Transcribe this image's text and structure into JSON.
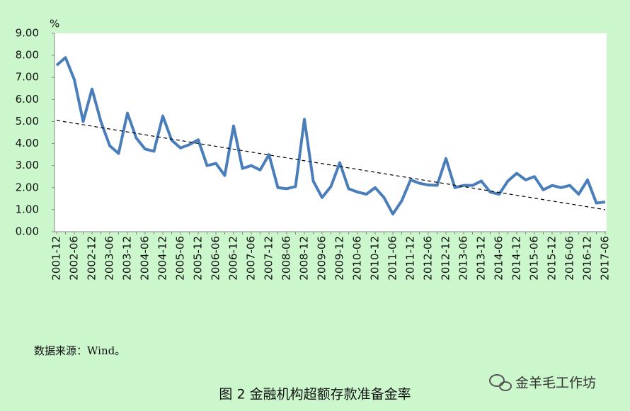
{
  "chart_data": {
    "type": "line",
    "y_unit": "%",
    "categories": [
      "2001-12",
      null,
      "2002-06",
      null,
      "2002-12",
      null,
      "2003-06",
      null,
      "2003-12",
      null,
      "2004-06",
      null,
      "2004-12",
      null,
      "2005-06",
      null,
      "2005-12",
      null,
      "2006-06",
      null,
      "2006-12",
      null,
      "2007-06",
      null,
      "2007-12",
      null,
      "2008-06",
      null,
      "2008-12",
      null,
      "2009-06",
      null,
      "2009-12",
      null,
      "2010-06",
      null,
      "2010-12",
      null,
      "2011-06",
      null,
      "2011-12",
      null,
      "2012-06",
      null,
      "2012-12",
      null,
      "2013-06",
      null,
      "2013-12",
      null,
      "2014-06",
      null,
      "2014-12",
      null,
      "2015-06",
      null,
      "2015-12",
      null,
      "2016-06",
      null,
      "2016-12",
      null,
      "2017-06"
    ],
    "series": [
      {
        "color": "#4a7ebb",
        "values": [
          7.55,
          7.9,
          6.9,
          5.0,
          6.47,
          5.0,
          3.9,
          3.55,
          5.38,
          4.25,
          3.75,
          3.65,
          5.25,
          4.15,
          3.8,
          3.95,
          4.17,
          3.0,
          3.1,
          2.55,
          4.8,
          2.87,
          3.0,
          2.8,
          3.5,
          2.0,
          1.95,
          2.05,
          5.1,
          2.3,
          1.55,
          2.05,
          3.13,
          1.95,
          1.8,
          1.7,
          2.0,
          1.55,
          0.8,
          1.4,
          2.35,
          2.2,
          2.12,
          2.1,
          3.32,
          2.0,
          2.1,
          2.1,
          2.3,
          1.8,
          1.7,
          2.3,
          2.65,
          2.35,
          2.5,
          1.9,
          2.1,
          2.0,
          2.1,
          1.7,
          2.35,
          1.3,
          1.35
        ]
      }
    ],
    "trendline": {
      "start": 5.05,
      "end": 1.0
    },
    "ylim": [
      0,
      9
    ],
    "yticks": [
      {
        "value": 0,
        "label": "0.00"
      },
      {
        "value": 1,
        "label": "1.00"
      },
      {
        "value": 2,
        "label": "2.00"
      },
      {
        "value": 3,
        "label": "3.00"
      },
      {
        "value": 4,
        "label": "4.00"
      },
      {
        "value": 5,
        "label": "5.00"
      },
      {
        "value": 6,
        "label": "6.00"
      },
      {
        "value": 7,
        "label": "7.00"
      },
      {
        "value": 8,
        "label": "8.00"
      },
      {
        "value": 9,
        "label": "9.00"
      }
    ],
    "source": "数据来源：Wind。",
    "caption": "图 2 金融机构超额存款准备金率",
    "watermark": "金羊毛工作坊"
  }
}
